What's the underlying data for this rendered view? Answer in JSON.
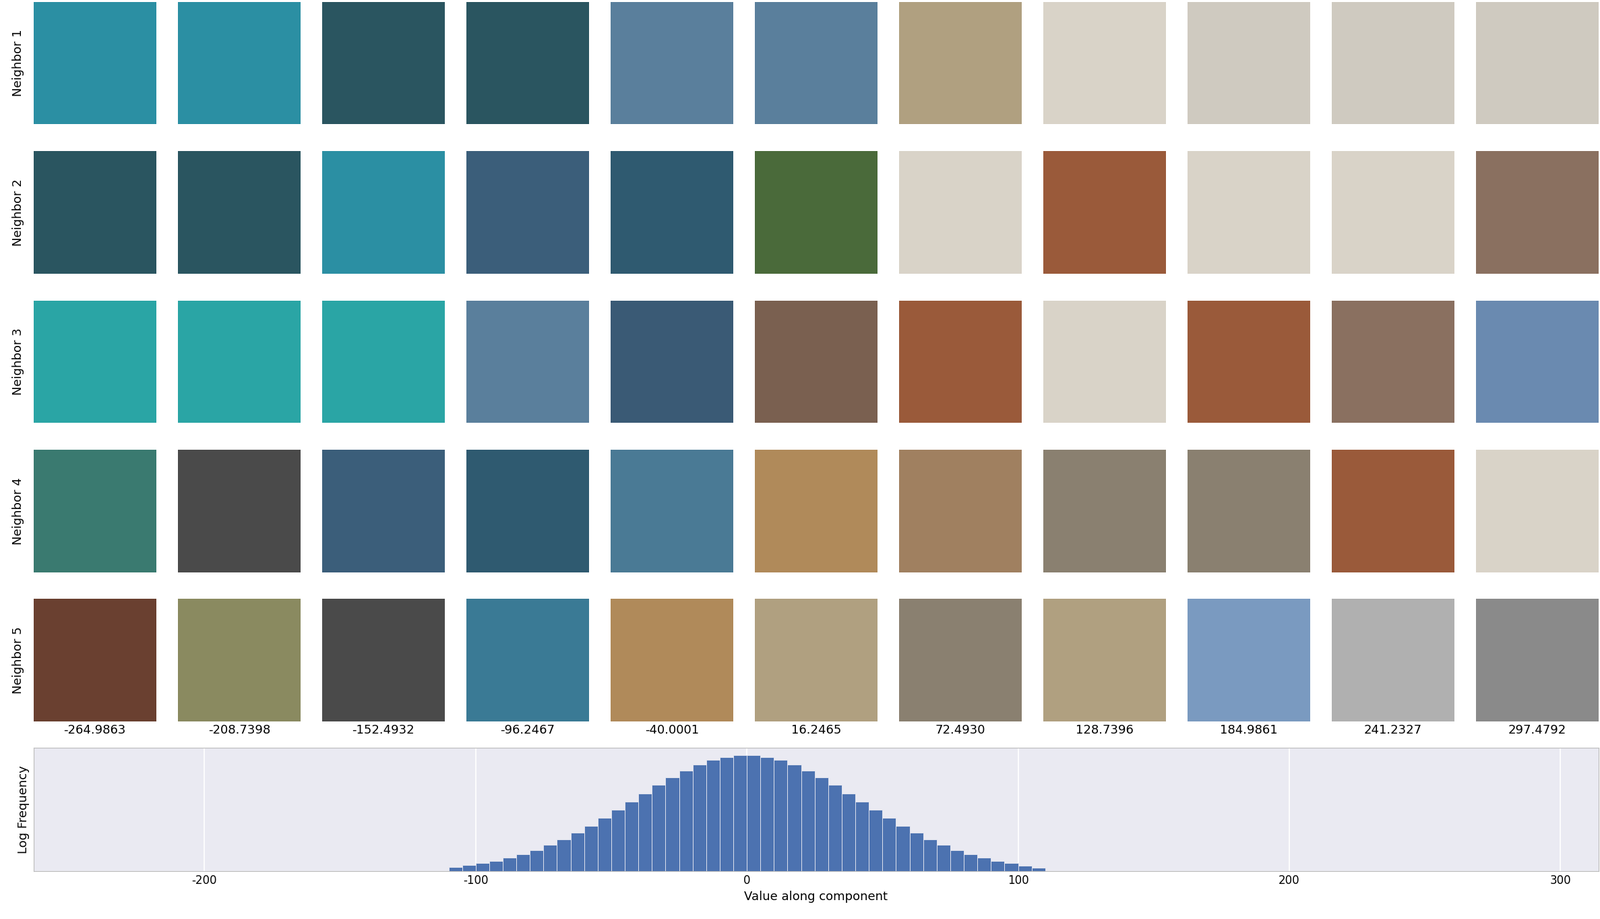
{
  "image_grid": {
    "row_labels": [
      "Neighbor 1",
      "Neighbor 2",
      "Neighbor 3",
      "Neighbor 4",
      "Neighbor 5"
    ],
    "columns": [
      {
        "value": -264.9863,
        "label": "-264.9863"
      },
      {
        "value": -208.7398,
        "label": "-208.7398"
      },
      {
        "value": -152.4932,
        "label": "-152.4932"
      },
      {
        "value": -96.2467,
        "label": "-96.2467"
      },
      {
        "value": -40.0001,
        "label": "-40.0001"
      },
      {
        "value": 16.2465,
        "label": "16.2465"
      },
      {
        "value": 72.493,
        "label": "72.4930"
      },
      {
        "value": 128.7396,
        "label": "128.7396"
      },
      {
        "value": 184.9861,
        "label": "184.9861"
      },
      {
        "value": 241.2327,
        "label": "241.2327"
      },
      {
        "value": 297.4792,
        "label": "297.4792"
      }
    ]
  },
  "chart_data": {
    "type": "histogram",
    "x_label": "Value along component",
    "y_label": "Log Frequency",
    "bins": [
      -110,
      -105,
      -100,
      -95,
      -90,
      -85,
      -80,
      -75,
      -70,
      -65,
      -60,
      -55,
      -50,
      -45,
      -40,
      -35,
      -30,
      -25,
      -20,
      -15,
      -10,
      -5,
      0,
      5,
      10,
      15,
      20,
      25,
      30,
      35,
      40,
      45,
      50,
      55,
      60,
      65,
      70,
      75,
      80,
      85,
      90,
      95,
      100,
      105,
      110
    ],
    "counts": [
      0.38,
      0.51,
      0.68,
      0.88,
      1.14,
      1.45,
      1.82,
      2.25,
      2.75,
      3.31,
      3.92,
      4.58,
      5.28,
      5.99,
      6.71,
      7.41,
      8.07,
      8.66,
      9.17,
      9.57,
      9.84,
      9.98,
      9.98,
      9.84,
      9.57,
      9.17,
      8.66,
      8.07,
      7.41,
      6.71,
      5.99,
      5.28,
      4.58,
      3.92,
      3.31,
      2.75,
      2.25,
      1.82,
      1.45,
      1.14,
      0.88,
      0.68,
      0.45,
      0.3
    ],
    "color": "#4c72b0",
    "xlim": [
      -263,
      314
    ],
    "ylim": [
      0,
      10.6
    ],
    "xticks": [
      -200,
      -100,
      0,
      100,
      200,
      300
    ],
    "yticks": [],
    "grid": true,
    "tick_labels": "x"
  }
}
